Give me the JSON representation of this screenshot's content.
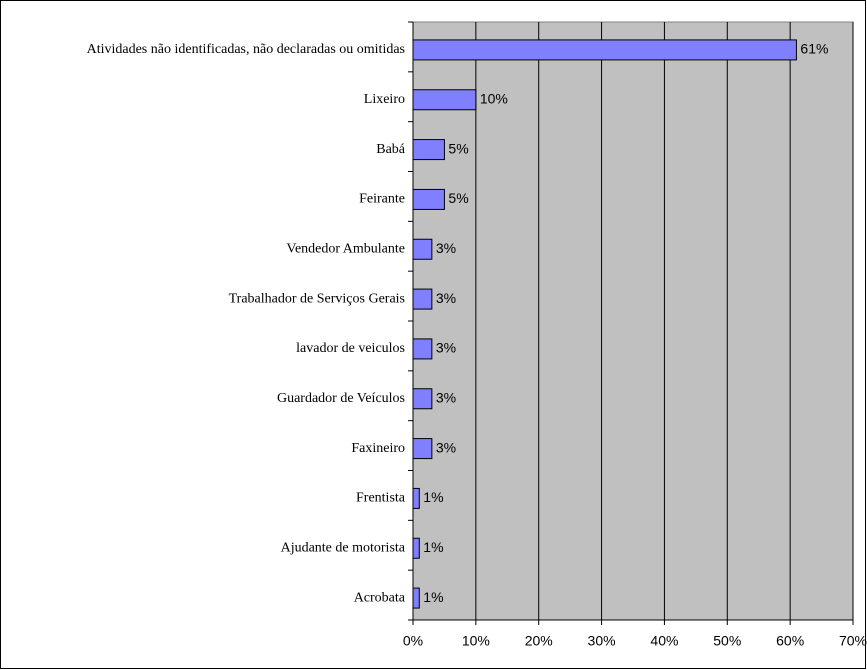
{
  "chart_data": {
    "type": "hbar",
    "categories": [
      "Atividades não identificadas, não declaradas ou omitidas",
      "Lixeiro",
      "Babá",
      "Feirante",
      "Vendedor Ambulante",
      "Trabalhador de Serviços Gerais",
      "lavador de veiculos",
      "Guardador de Veículos",
      "Faxineiro",
      "Frentista",
      "Ajudante de motorista",
      "Acrobata"
    ],
    "values": [
      61,
      10,
      5,
      5,
      3,
      3,
      3,
      3,
      3,
      1,
      1,
      1
    ],
    "value_labels": [
      "61%",
      "10%",
      "5%",
      "5%",
      "3%",
      "3%",
      "3%",
      "3%",
      "3%",
      "1%",
      "1%",
      "1%"
    ],
    "color": "#8080ff",
    "xlim": [
      0,
      70
    ],
    "xticks": [
      {
        "value": 0,
        "label": "0%"
      },
      {
        "value": 10,
        "label": "10%"
      },
      {
        "value": 20,
        "label": "20%"
      },
      {
        "value": 30,
        "label": "30%"
      },
      {
        "value": 40,
        "label": "40%"
      },
      {
        "value": 50,
        "label": "50%"
      },
      {
        "value": 60,
        "label": "60%"
      },
      {
        "value": 70,
        "label": "70%"
      }
    ],
    "grid": true
  }
}
